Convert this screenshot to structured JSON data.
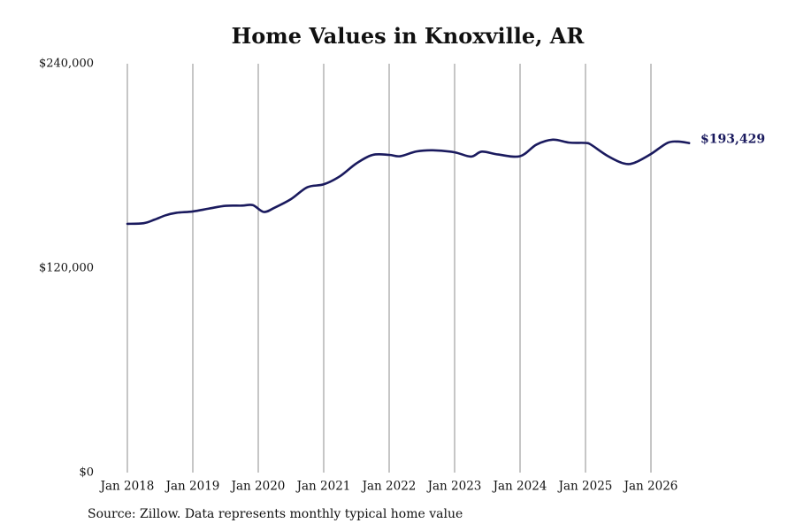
{
  "chart_data": {
    "type": "line",
    "title": "Home Values in Knoxville, AR",
    "xlabel": "",
    "ylabel": "",
    "ylim": [
      0,
      240000
    ],
    "xlim": [
      "2018-01",
      "2026-08"
    ],
    "grid": {
      "vertical": true,
      "horizontal": false
    },
    "legend": "none",
    "y_ticks": [
      {
        "value": 240000,
        "label": "$240,000"
      },
      {
        "value": 120000,
        "label": "$120,000"
      },
      {
        "value": 0,
        "label": "$0"
      }
    ],
    "x_ticks": [
      {
        "date": "2018-01",
        "label": "Jan 2018"
      },
      {
        "date": "2019-01",
        "label": "Jan 2019"
      },
      {
        "date": "2020-01",
        "label": "Jan 2020"
      },
      {
        "date": "2021-01",
        "label": "Jan 2021"
      },
      {
        "date": "2022-01",
        "label": "Jan 2022"
      },
      {
        "date": "2023-01",
        "label": "Jan 2023"
      },
      {
        "date": "2024-01",
        "label": "Jan 2024"
      },
      {
        "date": "2025-01",
        "label": "Jan 2025"
      },
      {
        "date": "2026-01",
        "label": "Jan 2026"
      }
    ],
    "line_color": "#1a1a5e",
    "end_label": "$193,429",
    "series": [
      {
        "points": [
          [
            "2018-01",
            146000
          ],
          [
            "2018-04",
            146400
          ],
          [
            "2018-06",
            148500
          ],
          [
            "2018-08",
            151000
          ],
          [
            "2018-10",
            152500
          ],
          [
            "2019-01",
            153300
          ],
          [
            "2019-04",
            155000
          ],
          [
            "2019-07",
            156600
          ],
          [
            "2019-10",
            156700
          ],
          [
            "2019-12",
            157000
          ],
          [
            "2020-02",
            153000
          ],
          [
            "2020-04",
            155500
          ],
          [
            "2020-07",
            160500
          ],
          [
            "2020-10",
            167500
          ],
          [
            "2021-01",
            169200
          ],
          [
            "2021-04",
            174000
          ],
          [
            "2021-07",
            181500
          ],
          [
            "2021-10",
            186500
          ],
          [
            "2022-01",
            186500
          ],
          [
            "2022-03",
            185700
          ],
          [
            "2022-06",
            188500
          ],
          [
            "2022-09",
            189200
          ],
          [
            "2023-01",
            188000
          ],
          [
            "2023-04",
            185500
          ],
          [
            "2023-06",
            188400
          ],
          [
            "2023-09",
            186700
          ],
          [
            "2024-01",
            185700
          ],
          [
            "2024-04",
            192500
          ],
          [
            "2024-07",
            195400
          ],
          [
            "2024-10",
            193700
          ],
          [
            "2025-01",
            193500
          ],
          [
            "2025-02",
            192500
          ],
          [
            "2025-05",
            186000
          ],
          [
            "2025-08",
            181500
          ],
          [
            "2025-10",
            181900
          ],
          [
            "2026-01",
            187000
          ],
          [
            "2026-04",
            193500
          ],
          [
            "2026-06",
            194300
          ],
          [
            "2026-08",
            193429
          ]
        ]
      }
    ]
  },
  "source_note": "Source: Zillow. Data represents monthly typical home value"
}
